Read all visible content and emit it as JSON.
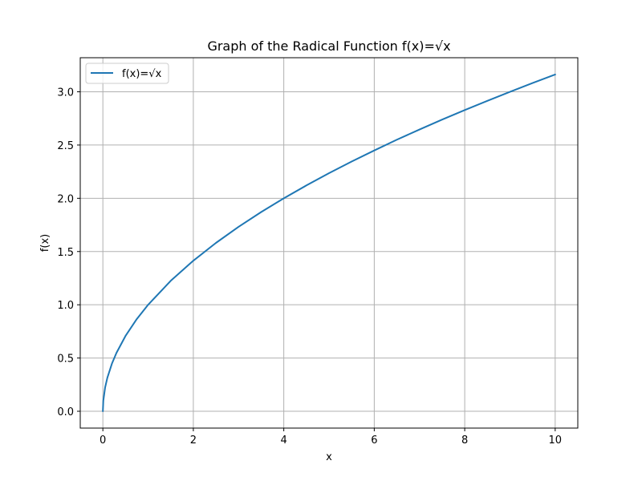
{
  "chart_data": {
    "type": "line",
    "title": "Graph of the Radical Function f(x)=√x",
    "xlabel": "x",
    "ylabel": "f(x)",
    "xlim": [
      -0.5,
      10.5
    ],
    "ylim": [
      -0.158,
      3.32
    ],
    "xticks": [
      0,
      2,
      4,
      6,
      8,
      10
    ],
    "xtick_labels": [
      "0",
      "2",
      "4",
      "6",
      "8",
      "10"
    ],
    "yticks": [
      0.0,
      0.5,
      1.0,
      1.5,
      2.0,
      2.5,
      3.0
    ],
    "ytick_labels": [
      "0.0",
      "0.5",
      "1.0",
      "1.5",
      "2.0",
      "2.5",
      "3.0"
    ],
    "grid": true,
    "legend_position": "upper-left",
    "series": [
      {
        "name": "f(x)=√x",
        "color": "#1f77b4",
        "x": [
          0,
          0.01,
          0.05,
          0.1,
          0.2,
          0.3,
          0.5,
          0.75,
          1,
          1.5,
          2,
          2.5,
          3,
          3.5,
          4,
          4.5,
          5,
          5.5,
          6,
          6.5,
          7,
          7.5,
          8,
          8.5,
          9,
          9.5,
          10
        ],
        "y": [
          0,
          0.1,
          0.224,
          0.316,
          0.447,
          0.548,
          0.707,
          0.866,
          1.0,
          1.225,
          1.414,
          1.581,
          1.732,
          1.871,
          2.0,
          2.121,
          2.236,
          2.345,
          2.449,
          2.55,
          2.646,
          2.739,
          2.828,
          2.915,
          3.0,
          3.082,
          3.162
        ]
      }
    ]
  }
}
